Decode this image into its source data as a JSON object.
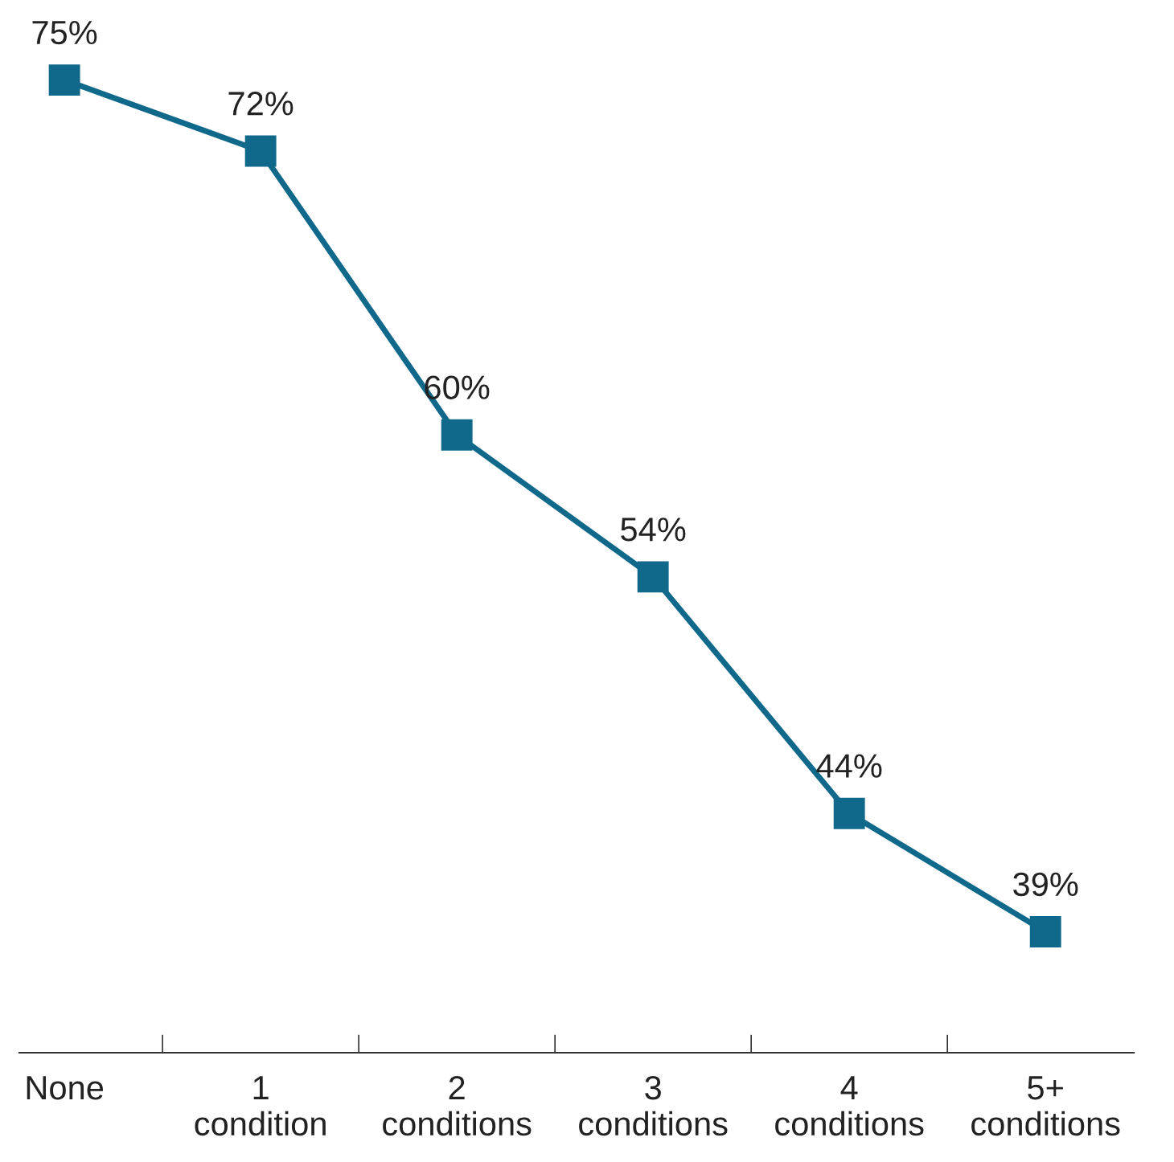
{
  "chart_data": {
    "type": "line",
    "categories": [
      "None",
      "1\ncondition",
      "2\nconditions",
      "3\nconditions",
      "4\nconditions",
      "5+\nconditions"
    ],
    "series": [
      {
        "color": "#10698a",
        "values": [
          75,
          72,
          60,
          54,
          44,
          39
        ],
        "value_labels": [
          "75%",
          "72%",
          "60%",
          "54%",
          "44%",
          "39%"
        ]
      }
    ],
    "marker": "square",
    "line_style": "solid",
    "grid": false,
    "legend": false
  }
}
